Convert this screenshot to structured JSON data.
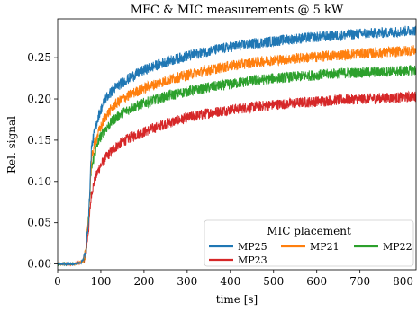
{
  "chart_data": {
    "type": "line",
    "title": "MFC & MIC measurements @ 5 kW",
    "xlabel": "time [s]",
    "ylabel": "Rel. signal",
    "xlim": [
      0,
      830
    ],
    "ylim": [
      -0.007,
      0.297
    ],
    "x_ticks": [
      0,
      100,
      200,
      300,
      400,
      500,
      600,
      700,
      800
    ],
    "y_ticks": [
      0.0,
      0.05,
      0.1,
      0.15,
      0.2,
      0.25
    ],
    "x_tick_labels": [
      "0",
      "100",
      "200",
      "300",
      "400",
      "500",
      "600",
      "700",
      "800"
    ],
    "y_tick_labels": [
      "0.00",
      "0.05",
      "0.10",
      "0.15",
      "0.20",
      "0.25"
    ],
    "grid": false,
    "legend": {
      "title": "MIC placement",
      "placement": "lower-right",
      "columns": 3
    },
    "x": [
      0,
      40,
      55,
      65,
      72,
      78,
      85,
      95,
      110,
      130,
      150,
      175,
      200,
      250,
      300,
      350,
      400,
      450,
      500,
      550,
      600,
      650,
      700,
      750,
      800,
      830
    ],
    "series": [
      {
        "name": "MP25",
        "color": "#1f77b4",
        "values": [
          0.0,
          0.0,
          0.002,
          0.012,
          0.06,
          0.14,
          0.16,
          0.18,
          0.2,
          0.212,
          0.22,
          0.228,
          0.235,
          0.245,
          0.252,
          0.258,
          0.263,
          0.267,
          0.27,
          0.273,
          0.275,
          0.277,
          0.279,
          0.28,
          0.282,
          0.283
        ]
      },
      {
        "name": "MP21",
        "color": "#ff7f0e",
        "values": [
          0.0,
          0.0,
          0.002,
          0.012,
          0.06,
          0.125,
          0.145,
          0.16,
          0.178,
          0.192,
          0.2,
          0.207,
          0.213,
          0.222,
          0.229,
          0.235,
          0.24,
          0.244,
          0.247,
          0.249,
          0.251,
          0.253,
          0.255,
          0.256,
          0.258,
          0.259
        ]
      },
      {
        "name": "MP22",
        "color": "#2ca02c",
        "values": [
          0.0,
          0.0,
          0.002,
          0.012,
          0.06,
          0.115,
          0.132,
          0.15,
          0.163,
          0.175,
          0.183,
          0.19,
          0.195,
          0.203,
          0.209,
          0.214,
          0.218,
          0.222,
          0.225,
          0.227,
          0.229,
          0.231,
          0.232,
          0.233,
          0.234,
          0.235
        ]
      },
      {
        "name": "MP23",
        "color": "#d62728",
        "values": [
          0.0,
          0.0,
          0.002,
          0.01,
          0.045,
          0.085,
          0.1,
          0.115,
          0.128,
          0.14,
          0.148,
          0.155,
          0.16,
          0.17,
          0.177,
          0.183,
          0.187,
          0.19,
          0.193,
          0.195,
          0.197,
          0.199,
          0.2,
          0.201,
          0.202,
          0.203
        ]
      }
    ]
  }
}
